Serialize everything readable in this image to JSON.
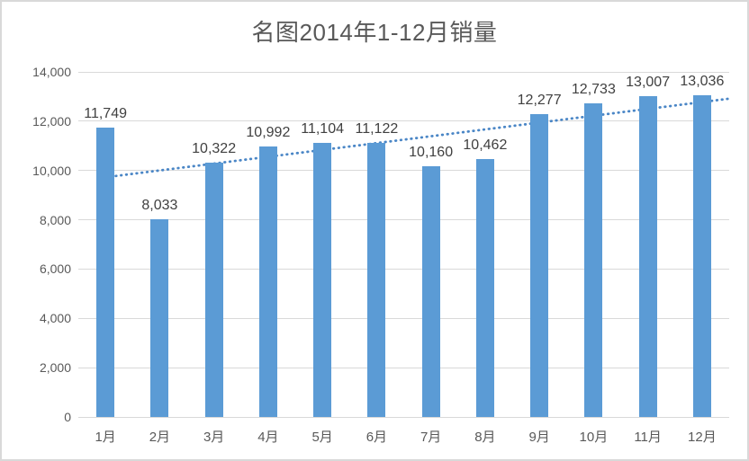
{
  "window": {
    "background": "#ffffff",
    "border_color": "#d9d9d9"
  },
  "chart_data": {
    "type": "bar",
    "title": "名图2014年1-12月销量",
    "categories": [
      "1月",
      "2月",
      "3月",
      "4月",
      "5月",
      "6月",
      "7月",
      "8月",
      "9月",
      "10月",
      "11月",
      "12月"
    ],
    "values": [
      11749,
      8033,
      10322,
      10992,
      11104,
      11122,
      10160,
      10462,
      12277,
      12733,
      13007,
      13036
    ],
    "data_labels": [
      "11,749",
      "8,033",
      "10,322",
      "10,992",
      "11,104",
      "11,122",
      "10,160",
      "10,462",
      "12,277",
      "12,733",
      "13,007",
      "13,036"
    ],
    "xlabel": "",
    "ylabel": "",
    "ylim": [
      0,
      14000
    ],
    "ytick_step": 2000,
    "ytick_labels": [
      "0",
      "2,000",
      "4,000",
      "6,000",
      "8,000",
      "10,000",
      "12,000",
      "14,000"
    ],
    "grid": true,
    "legend": "none",
    "bar_color": "#5b9bd5",
    "gridline_color": "#d9d9d9",
    "axis_text_color": "#595959",
    "data_label_color": "#404040",
    "title_color": "#595959",
    "trendline": {
      "type": "linear",
      "style": "dotted",
      "color": "#4a86c6",
      "value_at_first_category": 9724,
      "value_at_plot_right": 12914
    }
  }
}
